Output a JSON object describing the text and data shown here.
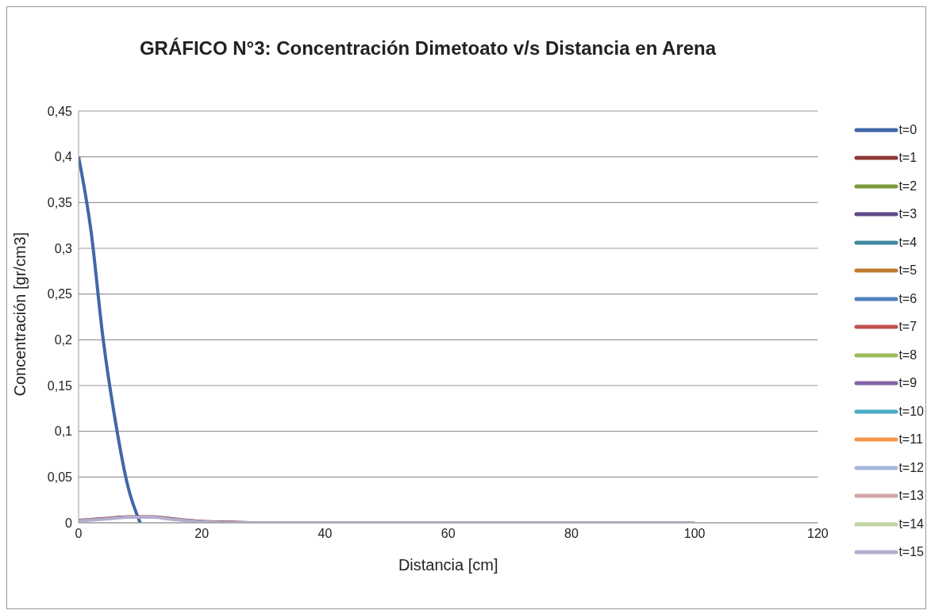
{
  "chart_data": {
    "type": "line",
    "title": "GRÁFICO N°3: Concentración Dimetoato v/s Distancia en Arena",
    "xlabel": "Distancia [cm]",
    "ylabel": "Concentración [gr/cm3]",
    "x": [
      0,
      2,
      4,
      6,
      8,
      10,
      12,
      15,
      20,
      25,
      30,
      40,
      50,
      60,
      70,
      80,
      90,
      100
    ],
    "series": [
      {
        "name": "t=0",
        "color": "#4167a8",
        "values": [
          0.4,
          0.32,
          0.2,
          0.11,
          0.04,
          0,
          null,
          null,
          null,
          null,
          null,
          null,
          null,
          null,
          null,
          null,
          null,
          null
        ]
      },
      {
        "name": "t=1",
        "color": "#8e3a38",
        "values": [
          0.003,
          0.004,
          0.005,
          0.006,
          0.007,
          0.007,
          0.007,
          0.005,
          0.002,
          0.001,
          0,
          null,
          null,
          null,
          null,
          null,
          null,
          null
        ]
      },
      {
        "name": "t=2",
        "color": "#7a9a3c",
        "values": [
          null,
          null,
          null,
          null,
          null,
          null,
          null,
          null,
          null,
          null,
          null,
          null,
          null,
          null,
          null,
          null,
          null,
          null
        ]
      },
      {
        "name": "t=3",
        "color": "#5e4a8a",
        "values": [
          null,
          null,
          null,
          null,
          null,
          null,
          null,
          null,
          null,
          null,
          null,
          null,
          null,
          null,
          null,
          null,
          null,
          null
        ]
      },
      {
        "name": "t=4",
        "color": "#3f87a0",
        "values": [
          null,
          null,
          null,
          null,
          null,
          null,
          null,
          null,
          null,
          null,
          null,
          null,
          null,
          null,
          null,
          null,
          null,
          null
        ]
      },
      {
        "name": "t=5",
        "color": "#c07a30",
        "values": [
          null,
          null,
          null,
          null,
          null,
          null,
          null,
          null,
          null,
          null,
          null,
          null,
          null,
          null,
          null,
          null,
          null,
          null
        ]
      },
      {
        "name": "t=6",
        "color": "#4f81bd",
        "values": [
          null,
          null,
          null,
          null,
          null,
          null,
          null,
          null,
          null,
          null,
          null,
          null,
          null,
          null,
          null,
          null,
          null,
          null
        ]
      },
      {
        "name": "t=7",
        "color": "#c0504d",
        "values": [
          null,
          null,
          null,
          null,
          null,
          null,
          null,
          null,
          null,
          null,
          null,
          null,
          null,
          null,
          null,
          null,
          null,
          null
        ]
      },
      {
        "name": "t=8",
        "color": "#9bbb59",
        "values": [
          null,
          null,
          null,
          null,
          null,
          null,
          null,
          null,
          null,
          null,
          null,
          null,
          null,
          null,
          null,
          null,
          null,
          null
        ]
      },
      {
        "name": "t=9",
        "color": "#8064a2",
        "values": [
          null,
          null,
          null,
          null,
          null,
          null,
          null,
          null,
          null,
          null,
          null,
          null,
          null,
          null,
          null,
          null,
          null,
          null
        ]
      },
      {
        "name": "t=10",
        "color": "#4bacc6",
        "values": [
          null,
          null,
          null,
          null,
          null,
          null,
          null,
          null,
          null,
          null,
          null,
          null,
          null,
          null,
          null,
          null,
          null,
          null
        ]
      },
      {
        "name": "t=11",
        "color": "#f79646",
        "values": [
          null,
          null,
          null,
          null,
          null,
          null,
          null,
          null,
          null,
          null,
          null,
          null,
          null,
          null,
          null,
          null,
          null,
          null
        ]
      },
      {
        "name": "t=12",
        "color": "#a5b6d9",
        "values": [
          null,
          null,
          null,
          null,
          null,
          null,
          null,
          null,
          null,
          null,
          null,
          null,
          null,
          null,
          null,
          null,
          null,
          null
        ]
      },
      {
        "name": "t=13",
        "color": "#d1a5a6",
        "values": [
          null,
          null,
          null,
          null,
          null,
          null,
          null,
          null,
          null,
          null,
          null,
          null,
          null,
          null,
          null,
          null,
          null,
          null
        ]
      },
      {
        "name": "t=14",
        "color": "#c0d3a5",
        "values": [
          null,
          null,
          null,
          null,
          null,
          null,
          null,
          null,
          null,
          null,
          null,
          null,
          null,
          null,
          null,
          null,
          null,
          null
        ]
      },
      {
        "name": "t=15",
        "color": "#b3aed0",
        "values": [
          0.002,
          0.003,
          0.004,
          0.005,
          0.006,
          0.006,
          0.006,
          0.004,
          0.001,
          0,
          0,
          0,
          0,
          0,
          0,
          0,
          0,
          0
        ]
      }
    ],
    "xlim": [
      0,
      120
    ],
    "xticks": [
      0,
      20,
      40,
      60,
      80,
      100,
      120
    ],
    "ylim": [
      0,
      0.45
    ],
    "yticks": [
      {
        "value": 0,
        "label": "0"
      },
      {
        "value": 0.05,
        "label": "0,05"
      },
      {
        "value": 0.1,
        "label": "0,1"
      },
      {
        "value": 0.15,
        "label": "0,15"
      },
      {
        "value": 0.2,
        "label": "0,2"
      },
      {
        "value": 0.25,
        "label": "0,25"
      },
      {
        "value": 0.3,
        "label": "0,3"
      },
      {
        "value": 0.35,
        "label": "0,35"
      },
      {
        "value": 0.4,
        "label": "0,4"
      },
      {
        "value": 0.45,
        "label": "0,45"
      }
    ],
    "grid": "y",
    "legend": "right",
    "marker": "none",
    "line_style": "solid"
  }
}
